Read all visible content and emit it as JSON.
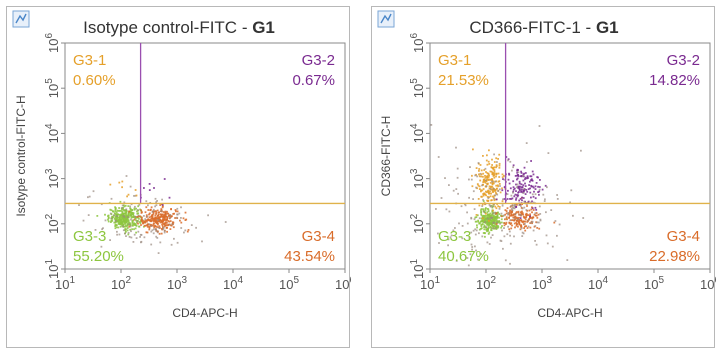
{
  "colors": {
    "vertical_gate": "#9a4fb0",
    "horizontal_gate": "#e0b24a",
    "q1": "#e5a02a",
    "q2": "#7a2a90",
    "q3": "#8dc63f",
    "q4": "#d96c2a",
    "background_events": "#9a8a80"
  },
  "chart_data": [
    {
      "type": "scatter",
      "title": "Isotype control-FITC",
      "gate": "G1",
      "title_sep": "-",
      "xlabel": "CD4-APC-H",
      "ylabel": "Isotype control-FITC-H",
      "scale": "log",
      "xlim": [
        1,
        6
      ],
      "ylim": [
        1,
        6
      ],
      "x_ticks": [
        1,
        2,
        3,
        4,
        5,
        6
      ],
      "y_ticks": [
        1,
        2,
        3,
        4,
        5,
        6
      ],
      "tick_base": "10",
      "vertical_gate_x": 2.35,
      "horizontal_gate_y": 2.45,
      "quadrants": [
        {
          "name": "G3-1",
          "percent": "0.60%"
        },
        {
          "name": "G3-2",
          "percent": "0.67%"
        },
        {
          "name": "G3-3",
          "percent": "55.20%"
        },
        {
          "name": "G3-4",
          "percent": "43.54%"
        }
      ]
    },
    {
      "type": "scatter",
      "title": "CD366-FITC-1",
      "gate": "G1",
      "title_sep": "-",
      "xlabel": "CD4-APC-H",
      "ylabel": "CD366-FITC-H",
      "scale": "log",
      "xlim": [
        1,
        6
      ],
      "ylim": [
        1,
        6
      ],
      "x_ticks": [
        1,
        2,
        3,
        4,
        5,
        6
      ],
      "y_ticks": [
        1,
        2,
        3,
        4,
        5,
        6
      ],
      "tick_base": "10",
      "vertical_gate_x": 2.35,
      "horizontal_gate_y": 2.45,
      "quadrants": [
        {
          "name": "G3-1",
          "percent": "21.53%"
        },
        {
          "name": "G3-2",
          "percent": "14.82%"
        },
        {
          "name": "G3-3",
          "percent": "40.67%"
        },
        {
          "name": "G3-4",
          "percent": "22.98%"
        }
      ]
    }
  ]
}
